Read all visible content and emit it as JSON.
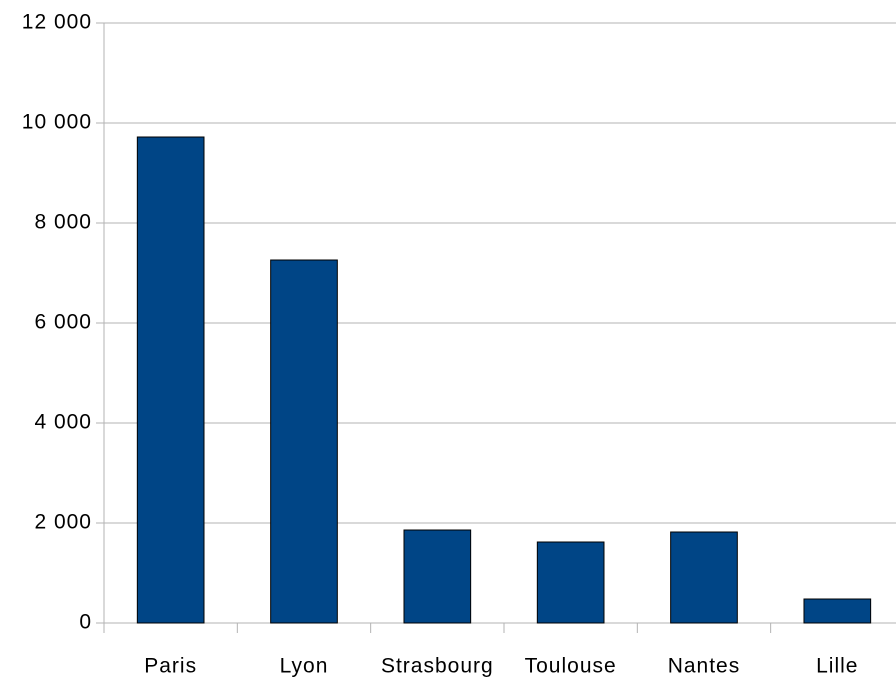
{
  "chart_data": {
    "type": "bar",
    "categories": [
      "Paris",
      "Lyon",
      "Strasbourg",
      "Toulouse",
      "Nantes",
      "Lille"
    ],
    "values": [
      9720,
      7260,
      1860,
      1620,
      1820,
      480
    ],
    "color": "#004586",
    "ylim": [
      0,
      12000
    ],
    "yticks": [
      0,
      {
        "value": 2000,
        "label": "2 000"
      },
      {
        "value": 4000,
        "label": "4 000"
      },
      {
        "value": 6000,
        "label": "6 000"
      },
      {
        "value": 8000,
        "label": "8 000"
      },
      {
        "value": 10000,
        "label": "10 000"
      },
      {
        "value": 12000,
        "label": "12 000"
      }
    ],
    "grid": true
  }
}
